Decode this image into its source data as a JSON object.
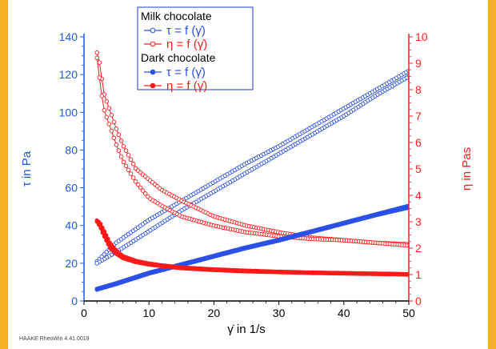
{
  "colors": {
    "frame": "#f5b120",
    "left_axis": "#1a5adf",
    "right_axis": "#ff2020",
    "blue": "#2a50e8",
    "red": "#ff1a1a"
  },
  "footer_text": "HAAKE RheoWin 4.41.0019",
  "chart_data": {
    "type": "scatter",
    "xlabel": "γ̇ in 1/s",
    "ylabel_left": "τ in Pa",
    "ylabel_right": "η in Pas",
    "xlim": [
      0,
      50
    ],
    "ylim_left": [
      0,
      140
    ],
    "ylim_right": [
      0,
      10
    ],
    "x_ticks": [
      "0",
      "10",
      "20",
      "30",
      "40",
      "50"
    ],
    "y_left_ticks": [
      "0",
      "20",
      "40",
      "60",
      "80",
      "100",
      "120",
      "140"
    ],
    "y_right_ticks": [
      "0",
      "1",
      "2",
      "3",
      "4",
      "5",
      "6",
      "7",
      "8",
      "9",
      "10"
    ],
    "grid": false,
    "legend": {
      "placement": "top-center",
      "groups": [
        {
          "title": "Milk chocolate",
          "items": [
            {
              "label": "τ = f (γ̇)",
              "color": "#2a50e8",
              "marker": "open-circle"
            },
            {
              "label": "η = f (γ̇)",
              "color": "#ff1a1a",
              "marker": "open-circle"
            }
          ]
        },
        {
          "title": "Dark chocolate",
          "items": [
            {
              "label": "τ = f (γ̇)",
              "color": "#2a50e8",
              "marker": "filled-circle"
            },
            {
              "label": "η = f (γ̇)",
              "color": "#ff1a1a",
              "marker": "filled-circle"
            }
          ]
        }
      ]
    },
    "series": [
      {
        "sample": "Milk chocolate",
        "quantity": "τ",
        "axis": "left",
        "color": "#2a50e8",
        "marker": "open",
        "branches": [
          {
            "x": [
              2,
              5,
              10,
              15,
              20,
              25,
              30,
              35,
              40,
              45,
              50
            ],
            "y": [
              21,
              31,
              43,
              53,
              63,
              73,
              82,
              92,
              102,
              112,
              122
            ]
          },
          {
            "x": [
              50,
              45,
              40,
              35,
              30,
              25,
              20,
              15,
              10,
              5,
              2
            ],
            "y": [
              119,
              109,
              98,
              88,
              78,
              68,
              58,
              48,
              37,
              26,
              20
            ]
          }
        ]
      },
      {
        "sample": "Milk chocolate",
        "quantity": "η",
        "axis": "right",
        "color": "#ff1a1a",
        "marker": "open",
        "branches": [
          {
            "x": [
              2,
              2.5,
              3,
              4,
              5,
              6,
              8,
              10,
              12,
              15,
              20,
              25,
              30,
              35,
              40,
              45,
              50
            ],
            "y": [
              9.4,
              8.9,
              7.9,
              7.2,
              6.5,
              5.9,
              5.0,
              4.6,
              4.2,
              3.8,
              3.2,
              2.85,
              2.6,
              2.4,
              2.3,
              2.2,
              2.15
            ]
          },
          {
            "x": [
              50,
              45,
              40,
              35,
              30,
              25,
              20,
              15,
              12,
              10,
              8,
              6,
              5,
              4,
              3,
              2.5,
              2
            ],
            "y": [
              2.1,
              2.2,
              2.3,
              2.35,
              2.45,
              2.6,
              2.85,
              3.2,
              3.6,
              3.9,
              4.5,
              5.3,
              5.9,
              6.6,
              7.3,
              8.2,
              9.2
            ]
          }
        ]
      },
      {
        "sample": "Dark chocolate",
        "quantity": "τ",
        "axis": "left",
        "color": "#2a50e8",
        "marker": "filled",
        "branches": [
          {
            "x": [
              2,
              5,
              10,
              15,
              20,
              25,
              30,
              35,
              40,
              45,
              50
            ],
            "y": [
              6.5,
              9.5,
              15,
              19.5,
              24,
              28.5,
              32.5,
              37,
              41.5,
              46,
              50.5
            ]
          },
          {
            "x": [
              50,
              45,
              40,
              35,
              30,
              25,
              20,
              15,
              10,
              5,
              2
            ],
            "y": [
              49.5,
              45.5,
              41,
              36.5,
              32,
              28,
              23.5,
              19,
              14.5,
              9,
              6
            ]
          }
        ]
      },
      {
        "sample": "Dark chocolate",
        "quantity": "η",
        "axis": "right",
        "color": "#ff1a1a",
        "marker": "filled",
        "branches": [
          {
            "x": [
              2,
              2.5,
              3,
              3.5,
              4,
              5,
              6,
              8,
              10,
              12,
              15,
              20,
              25,
              30,
              35,
              40,
              45,
              50
            ],
            "y": [
              3.05,
              2.95,
              2.7,
              2.45,
              2.2,
              1.9,
              1.7,
              1.52,
              1.42,
              1.35,
              1.27,
              1.2,
              1.15,
              1.11,
              1.08,
              1.06,
              1.04,
              1.02
            ]
          },
          {
            "x": [
              50,
              45,
              40,
              35,
              30,
              25,
              20,
              15,
              12,
              10,
              8,
              6,
              5,
              4,
              3,
              2.5,
              2
            ],
            "y": [
              1.0,
              1.02,
              1.04,
              1.06,
              1.09,
              1.12,
              1.17,
              1.24,
              1.32,
              1.38,
              1.47,
              1.62,
              1.78,
              2.0,
              2.5,
              2.8,
              3.0
            ]
          }
        ]
      }
    ]
  }
}
